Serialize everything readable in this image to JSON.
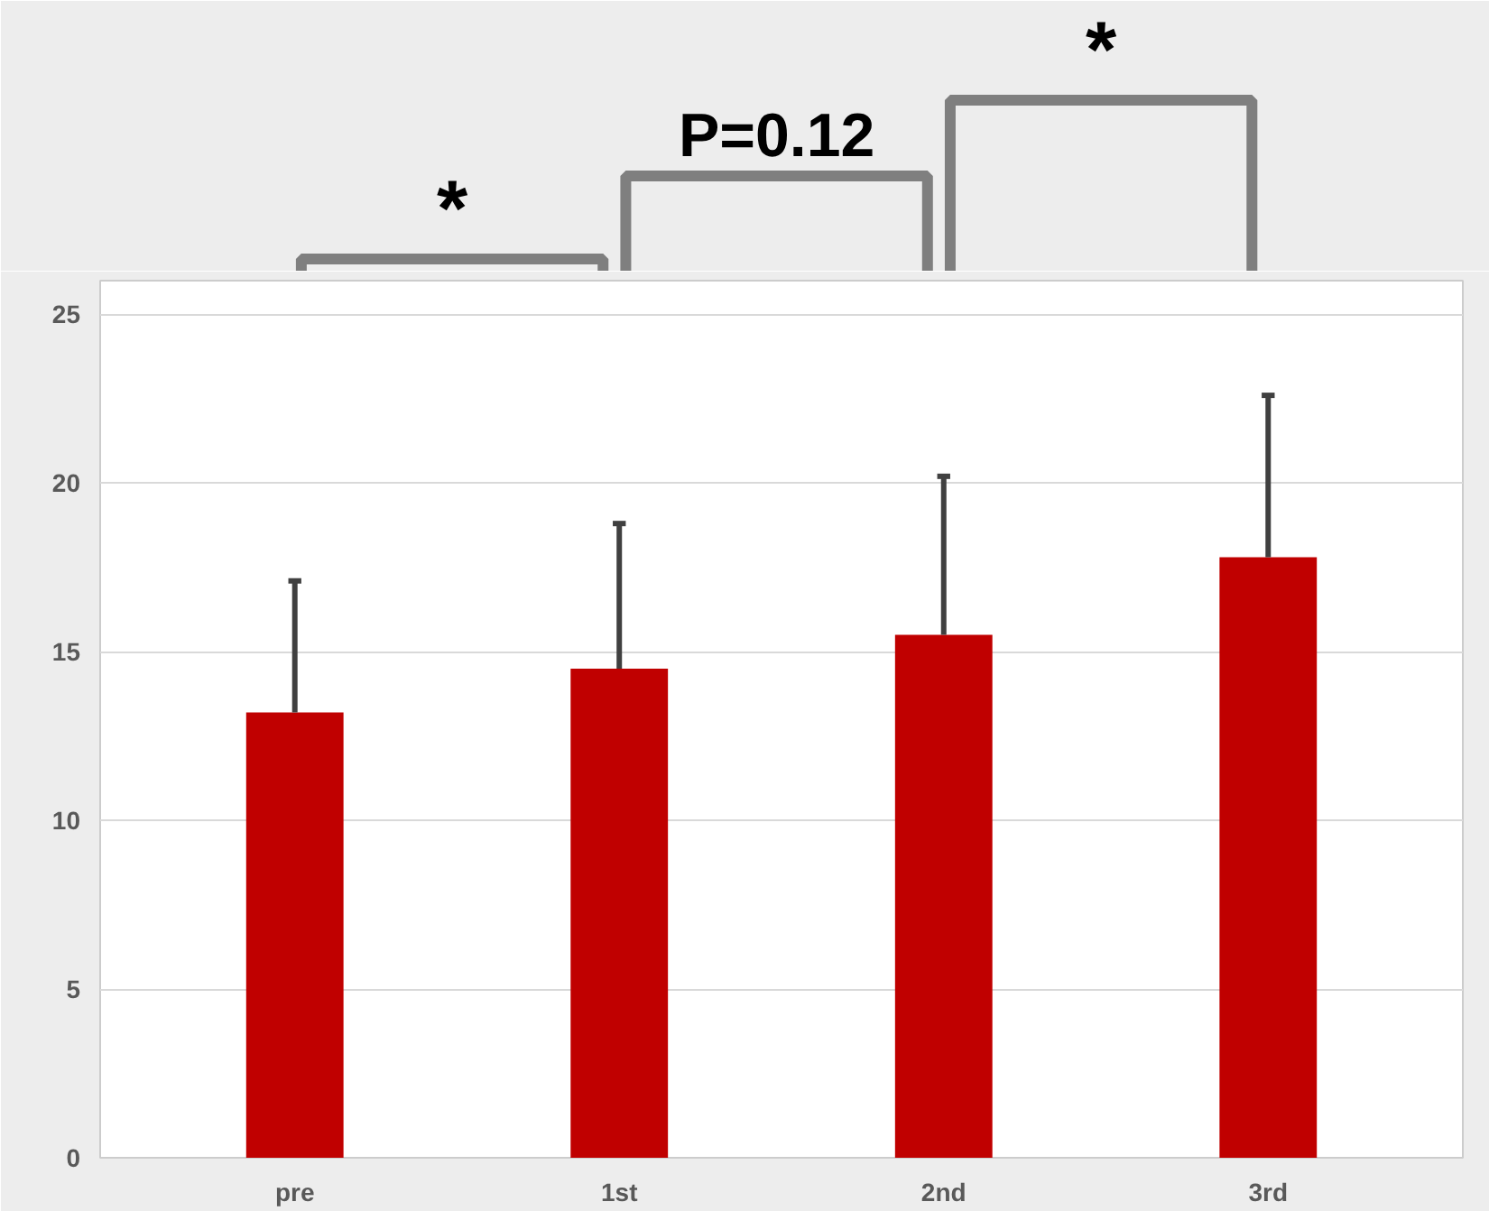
{
  "chart_data": {
    "type": "bar",
    "categories": [
      "pre",
      "1st",
      "2nd",
      "3rd"
    ],
    "values": [
      13.2,
      14.5,
      15.5,
      17.8
    ],
    "color": "#c00000",
    "errors": [
      [
        13.2,
        17.1
      ],
      [
        14.5,
        18.8
      ],
      [
        15.5,
        20.2
      ],
      [
        17.8,
        22.6
      ]
    ],
    "ylim": [
      0,
      26
    ],
    "yticks": [
      0,
      5,
      10,
      15,
      20,
      25
    ],
    "grid": "y",
    "annotations": [
      "*",
      "P=0.12",
      "*"
    ]
  }
}
